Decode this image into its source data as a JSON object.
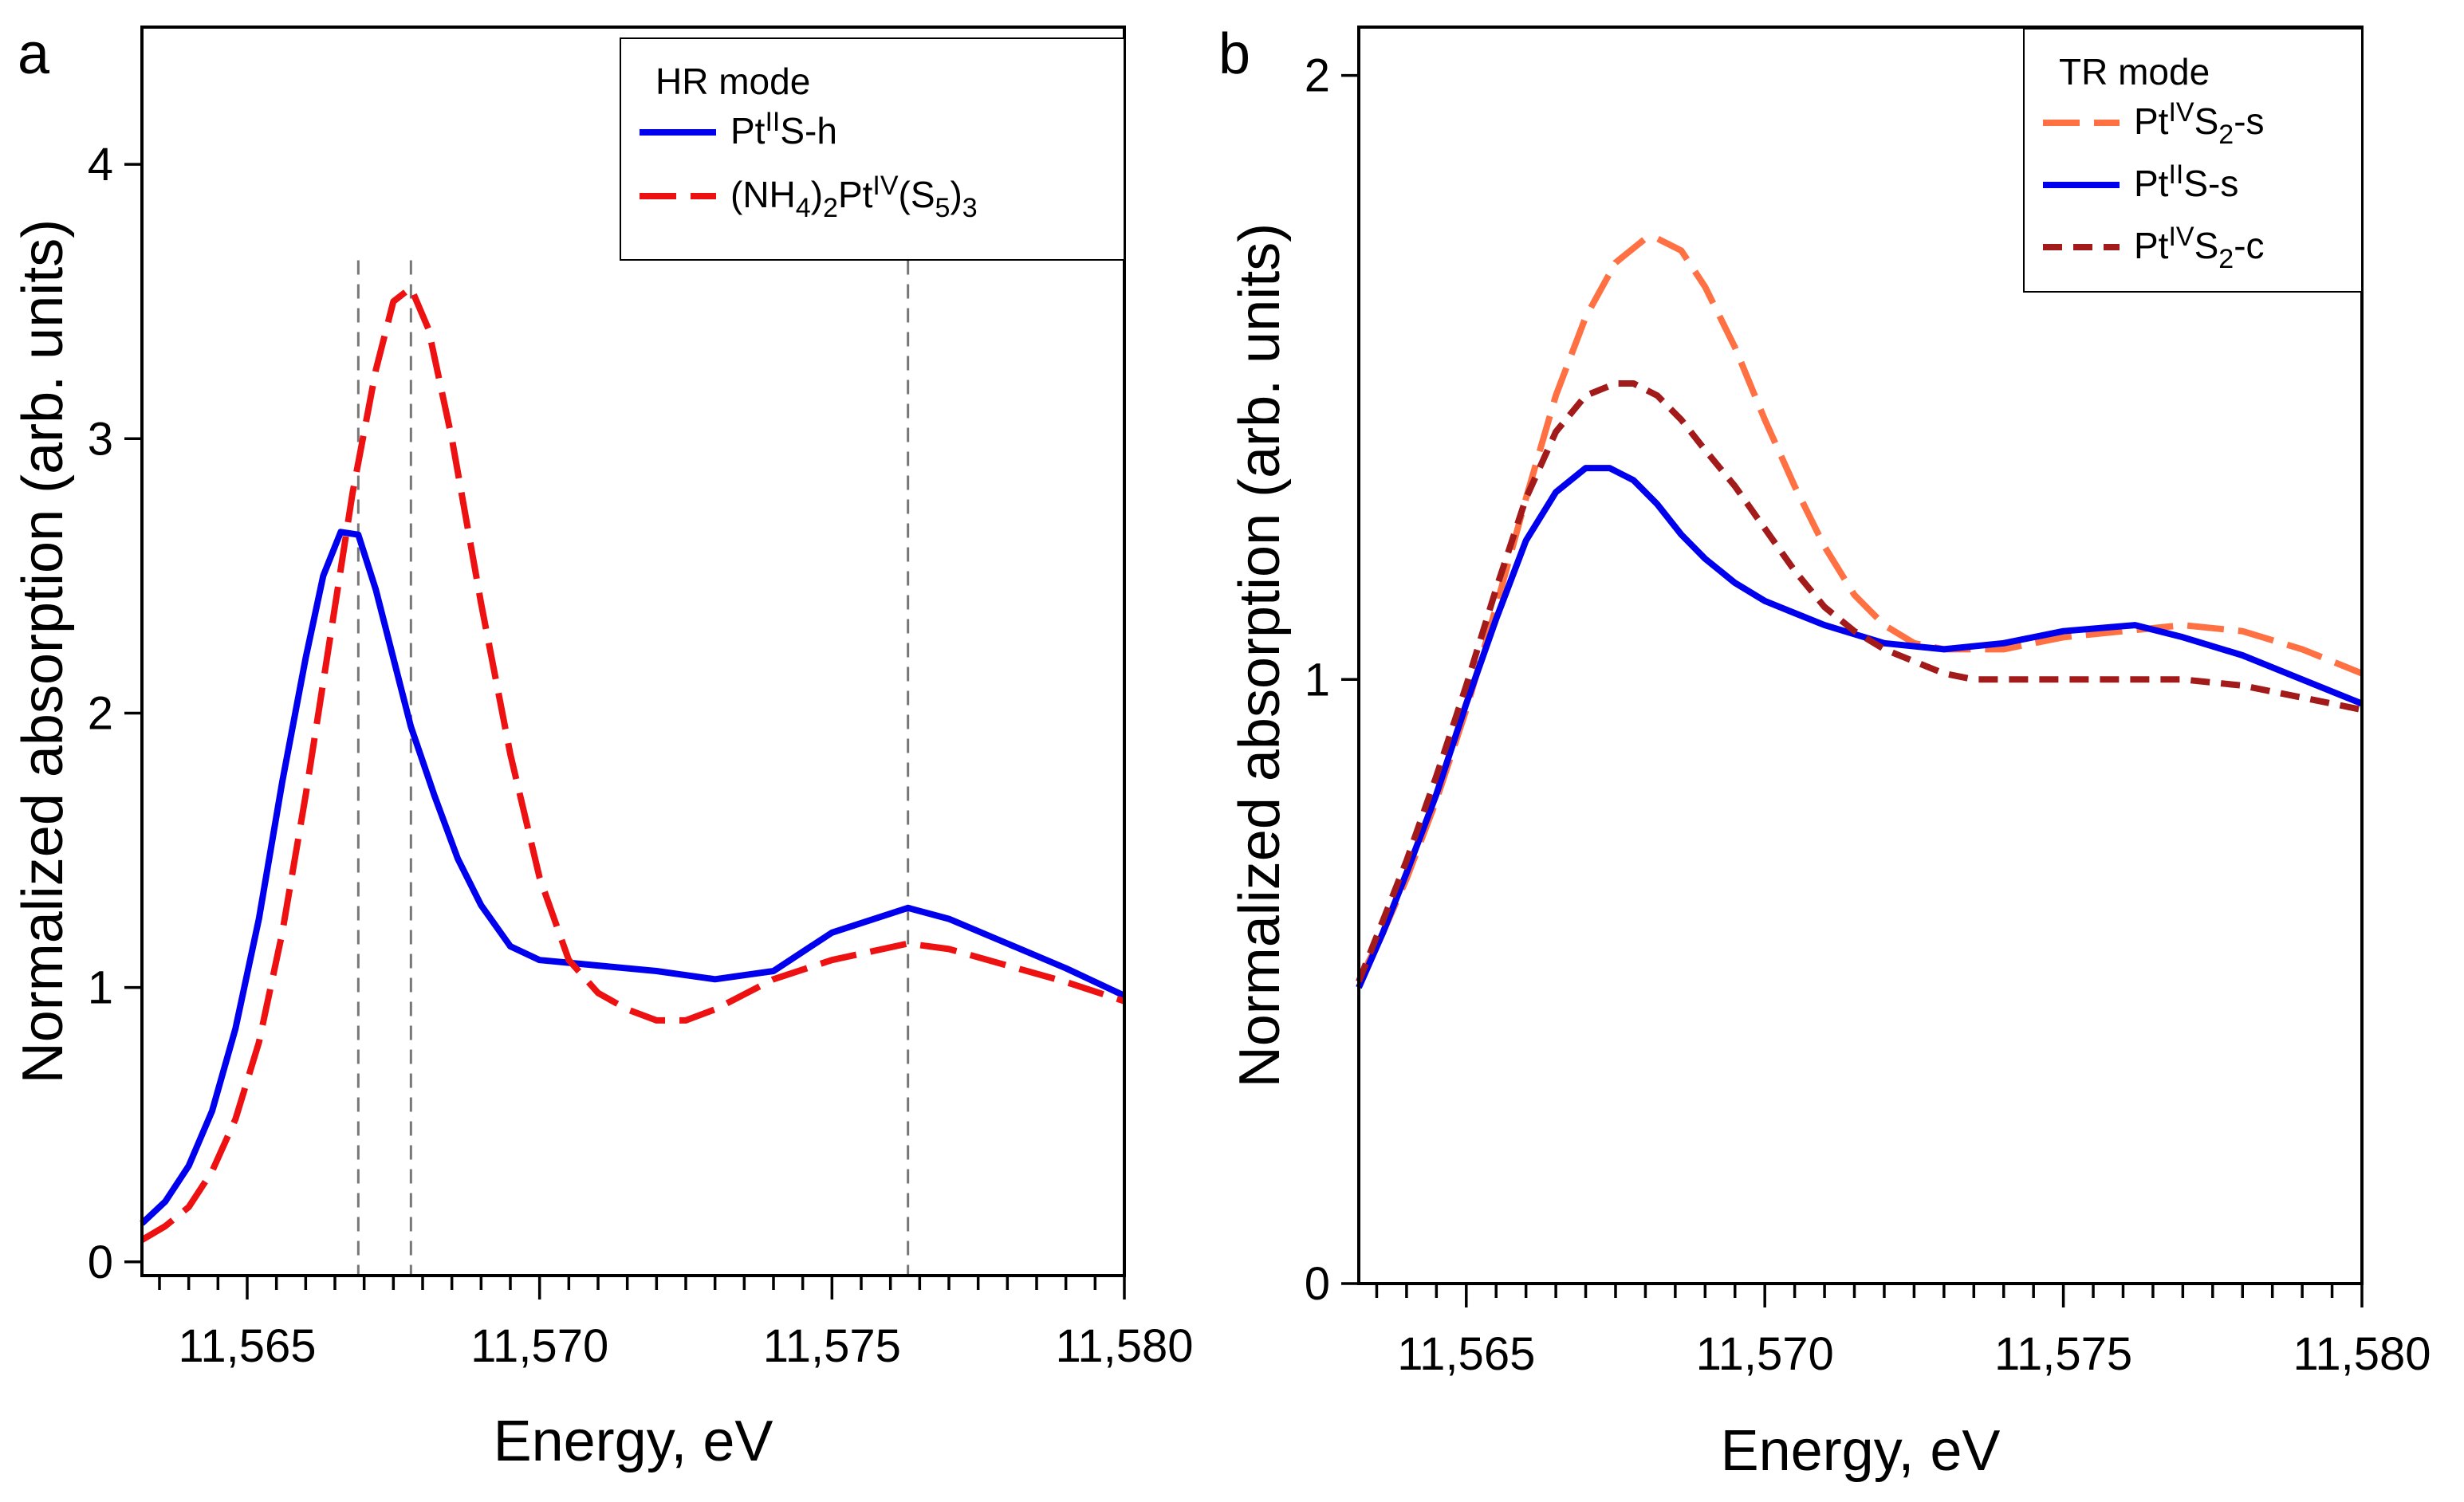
{
  "chart_data": [
    {
      "panel": "a",
      "type": "line",
      "xlabel": "Energy, eV",
      "ylabel": "Normalized absorption (arb. units)",
      "xlim": [
        11563.2,
        11580
      ],
      "ylim": [
        -0.05,
        4.5
      ],
      "xticks": [
        11565,
        11570,
        11575,
        11580
      ],
      "xtick_labels": [
        "11,565",
        "11,570",
        "11,575",
        "11,580"
      ],
      "yticks": [
        0,
        1,
        2,
        3,
        4
      ],
      "ytick_labels": [
        "0",
        "1",
        "2",
        "3",
        "4"
      ],
      "minor_x_step": 0.5,
      "vertical_lines": [
        11566.9,
        11567.8,
        11576.3
      ],
      "legend": {
        "title": "HR mode",
        "entries": [
          {
            "series": 0,
            "base": "Pt",
            "sup": "II",
            "after": "S-h"
          },
          {
            "series": 1,
            "pre": "(NH",
            "s1": "4",
            "mid": ")",
            "s2": "2",
            "base": "Pt",
            "sup": "IV",
            "post": "(S",
            "s3": "5",
            "end": ")",
            "s4": "3"
          }
        ]
      },
      "series": [
        {
          "name": "PtIIS-h",
          "color": "#0000ee",
          "dash": "solid",
          "x": [
            11563.2,
            11563.6,
            11564.0,
            11564.4,
            11564.8,
            11565.2,
            11565.6,
            11566.0,
            11566.3,
            11566.6,
            11566.9,
            11567.2,
            11567.5,
            11567.8,
            11568.2,
            11568.6,
            11569.0,
            11569.5,
            11570.0,
            11570.5,
            11571.0,
            11572.0,
            11573.0,
            11574.0,
            11575.0,
            11576.3,
            11577.0,
            11578.0,
            11579.0,
            11580.0
          ],
          "y": [
            0.14,
            0.22,
            0.35,
            0.55,
            0.85,
            1.25,
            1.75,
            2.2,
            2.5,
            2.66,
            2.65,
            2.45,
            2.2,
            1.95,
            1.7,
            1.47,
            1.3,
            1.15,
            1.1,
            1.09,
            1.08,
            1.06,
            1.03,
            1.06,
            1.2,
            1.29,
            1.25,
            1.16,
            1.07,
            0.97
          ]
        },
        {
          "name": "(NH4)2PtIV(S5)3",
          "color": "#ee1111",
          "dash": "long-dash",
          "x": [
            11563.2,
            11563.6,
            11564.0,
            11564.4,
            11564.8,
            11565.2,
            11565.6,
            11566.0,
            11566.4,
            11566.8,
            11567.2,
            11567.5,
            11567.8,
            11568.1,
            11568.5,
            11569.0,
            11569.5,
            11570.0,
            11570.5,
            11571.0,
            11571.5,
            11572.0,
            11572.5,
            11573.0,
            11574.0,
            11575.0,
            11576.3,
            11577.0,
            11578.0,
            11579.0,
            11580.0
          ],
          "y": [
            0.08,
            0.13,
            0.2,
            0.33,
            0.52,
            0.8,
            1.2,
            1.7,
            2.25,
            2.8,
            3.25,
            3.5,
            3.55,
            3.4,
            3.0,
            2.4,
            1.85,
            1.4,
            1.1,
            0.98,
            0.92,
            0.88,
            0.88,
            0.92,
            1.03,
            1.1,
            1.16,
            1.14,
            1.08,
            1.02,
            0.95
          ]
        }
      ]
    },
    {
      "panel": "b",
      "type": "line",
      "xlabel": "Energy, eV",
      "ylabel": "Normalized absorption (arb. units)",
      "xlim": [
        11563.2,
        11580
      ],
      "ylim": [
        0,
        2.08
      ],
      "xticks": [
        11565,
        11570,
        11575,
        11580
      ],
      "xtick_labels": [
        "11,565",
        "11,570",
        "11,575",
        "11,580"
      ],
      "yticks": [
        0,
        1,
        2
      ],
      "ytick_labels": [
        "0",
        "1",
        "2"
      ],
      "minor_x_step": 0.5,
      "legend": {
        "title": "TR mode",
        "entries": [
          {
            "series": 0,
            "base": "Pt",
            "sup": "IV",
            "post": "S",
            "sub": "2",
            "after": "-s"
          },
          {
            "series": 1,
            "base": "Pt",
            "sup": "II",
            "after": "S-s"
          },
          {
            "series": 2,
            "base": "Pt",
            "sup": "IV",
            "post": "S",
            "sub": "2",
            "after": "-c"
          }
        ]
      },
      "series": [
        {
          "name": "PtIVS2-s",
          "color": "#ff7043",
          "dash": "long-dash",
          "x": [
            11563.2,
            11563.6,
            11564.0,
            11564.5,
            11565.0,
            11565.5,
            11566.0,
            11566.5,
            11567.0,
            11567.5,
            11568.0,
            11568.2,
            11568.6,
            11569.0,
            11569.5,
            11570.0,
            11570.5,
            11571.0,
            11571.5,
            11572.0,
            11572.5,
            11573.0,
            11573.5,
            11574.0,
            11574.5,
            11575.0,
            11576.0,
            11577.0,
            11578.0,
            11579.0,
            11580.0
          ],
          "y": [
            0.5,
            0.58,
            0.67,
            0.8,
            0.95,
            1.12,
            1.3,
            1.47,
            1.6,
            1.69,
            1.73,
            1.73,
            1.71,
            1.65,
            1.55,
            1.43,
            1.32,
            1.22,
            1.14,
            1.09,
            1.06,
            1.05,
            1.05,
            1.05,
            1.06,
            1.07,
            1.08,
            1.09,
            1.08,
            1.05,
            1.01
          ]
        },
        {
          "name": "PtIIS-s",
          "color": "#0000ee",
          "dash": "solid",
          "x": [
            11563.2,
            11563.6,
            11564.0,
            11564.5,
            11565.0,
            11565.5,
            11566.0,
            11566.5,
            11567.0,
            11567.4,
            11567.8,
            11568.2,
            11568.6,
            11569.0,
            11569.5,
            11570.0,
            11570.5,
            11571.0,
            11572.0,
            11573.0,
            11574.0,
            11575.0,
            11576.2,
            11577.0,
            11578.0,
            11579.0,
            11580.0
          ],
          "y": [
            0.49,
            0.58,
            0.68,
            0.81,
            0.96,
            1.1,
            1.23,
            1.31,
            1.35,
            1.35,
            1.33,
            1.29,
            1.24,
            1.2,
            1.16,
            1.13,
            1.11,
            1.09,
            1.06,
            1.05,
            1.06,
            1.08,
            1.09,
            1.07,
            1.04,
            1.0,
            0.96
          ]
        },
        {
          "name": "PtIVS2-c",
          "color": "#a31a1a",
          "dash": "dash",
          "x": [
            11563.2,
            11563.6,
            11564.0,
            11564.5,
            11565.0,
            11565.5,
            11566.0,
            11566.5,
            11567.0,
            11567.5,
            11567.8,
            11568.2,
            11568.6,
            11569.0,
            11569.5,
            11570.0,
            11570.5,
            11571.0,
            11571.5,
            11572.0,
            11572.5,
            11573.0,
            11573.5,
            11574.0,
            11575.0,
            11576.0,
            11577.0,
            11578.0,
            11579.0,
            11580.0
          ],
          "y": [
            0.5,
            0.6,
            0.7,
            0.84,
            0.99,
            1.15,
            1.3,
            1.41,
            1.47,
            1.49,
            1.49,
            1.47,
            1.43,
            1.38,
            1.32,
            1.25,
            1.18,
            1.12,
            1.08,
            1.05,
            1.03,
            1.01,
            1.0,
            1.0,
            1.0,
            1.0,
            1.0,
            0.99,
            0.97,
            0.95
          ]
        }
      ]
    }
  ],
  "panels": {
    "a": {
      "letter": "a",
      "xlabel": "Energy, eV",
      "ylabel": "Normalized absorption (arb. units)",
      "legend_title": "HR mode"
    },
    "b": {
      "letter": "b",
      "xlabel": "Energy, eV",
      "ylabel": "Normalized absorption (arb. units)",
      "legend_title": "TR mode"
    }
  }
}
